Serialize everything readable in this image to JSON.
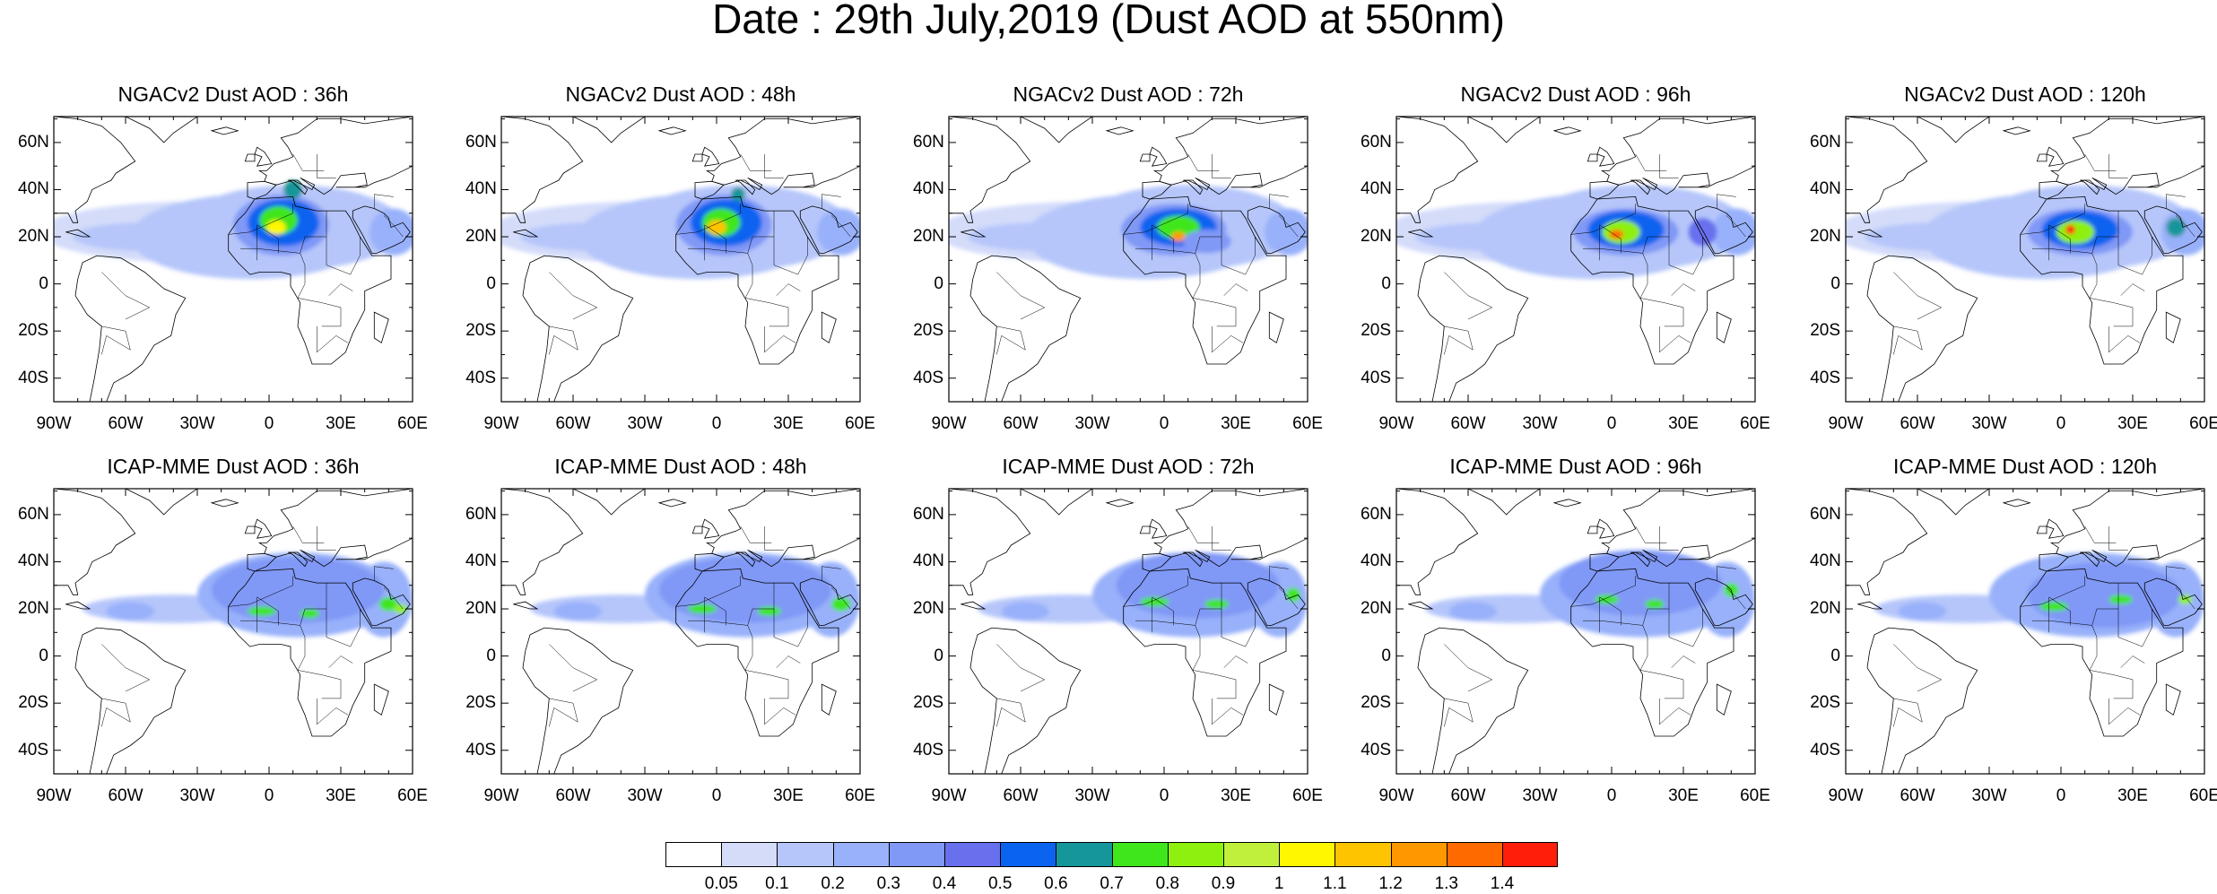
{
  "title": "Date : 29th July,2019 (Dust AOD at 550nm)",
  "lat_ticks": [
    "60N",
    "40N",
    "20N",
    "0",
    "20S",
    "40S"
  ],
  "lon_ticks": [
    "90W",
    "60W",
    "30W",
    "0",
    "30E",
    "60E"
  ],
  "panels": [
    {
      "title": "NGACv2 Dust AOD : 36h",
      "model": "NGACv2",
      "lead": "36h"
    },
    {
      "title": "NGACv2 Dust AOD : 48h",
      "model": "NGACv2",
      "lead": "48h"
    },
    {
      "title": "NGACv2 Dust AOD : 72h",
      "model": "NGACv2",
      "lead": "72h"
    },
    {
      "title": "NGACv2 Dust AOD : 96h",
      "model": "NGACv2",
      "lead": "96h"
    },
    {
      "title": "NGACv2 Dust AOD : 120h",
      "model": "NGACv2",
      "lead": "120h"
    },
    {
      "title": "ICAP-MME Dust AOD : 36h",
      "model": "ICAP-MME",
      "lead": "36h"
    },
    {
      "title": "ICAP-MME Dust AOD : 48h",
      "model": "ICAP-MME",
      "lead": "48h"
    },
    {
      "title": "ICAP-MME Dust AOD : 72h",
      "model": "ICAP-MME",
      "lead": "72h"
    },
    {
      "title": "ICAP-MME Dust AOD : 96h",
      "model": "ICAP-MME",
      "lead": "96h"
    },
    {
      "title": "ICAP-MME Dust AOD : 120h",
      "model": "ICAP-MME",
      "lead": "120h"
    }
  ],
  "colorbar": {
    "labels": [
      "0.05",
      "0.1",
      "0.2",
      "0.3",
      "0.4",
      "0.5",
      "0.6",
      "0.7",
      "0.8",
      "0.9",
      "1",
      "1.1",
      "1.2",
      "1.3",
      "1.4"
    ],
    "colors": [
      "#ffffff",
      "#d4dcfa",
      "#b6c6fa",
      "#98b1fa",
      "#8098f6",
      "#6870ee",
      "#0b64f0",
      "#15969a",
      "#40e61c",
      "#8ef00e",
      "#c0f03c",
      "#fff700",
      "#ffc400",
      "#ff9800",
      "#ff6a00",
      "#ff1e0a"
    ]
  }
}
